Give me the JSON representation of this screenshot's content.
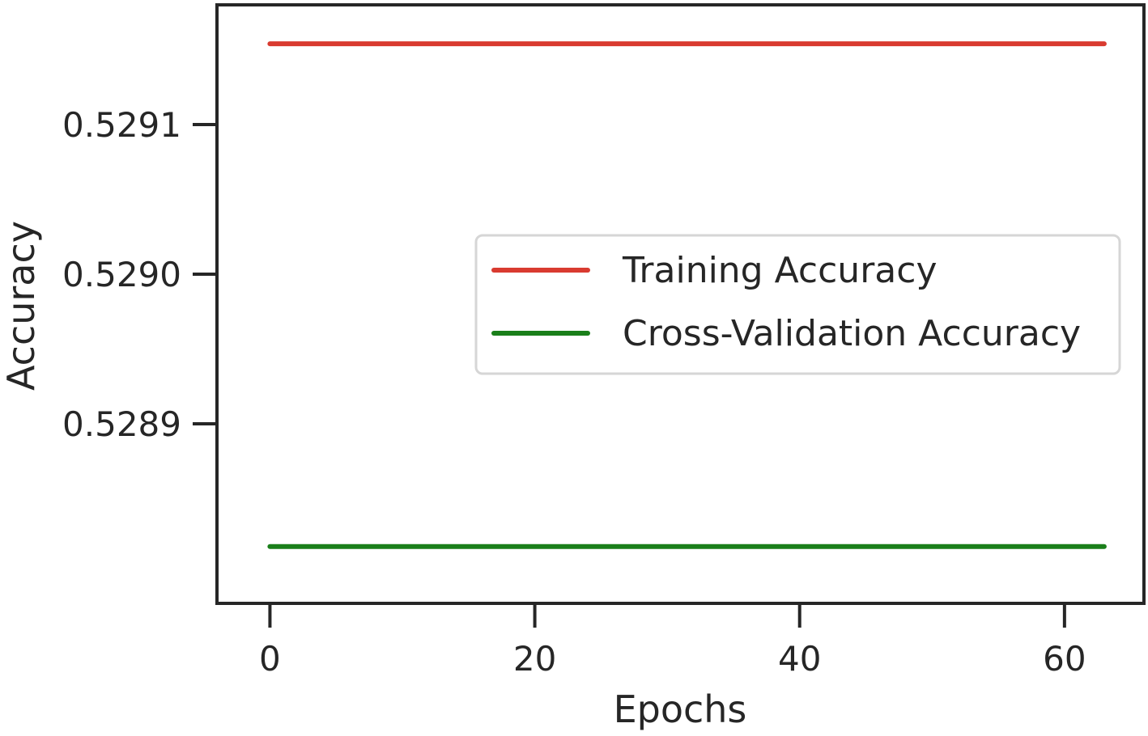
{
  "chart_data": {
    "type": "line",
    "title": "",
    "xlabel": "Epochs",
    "ylabel": "Accuracy",
    "xlim": [
      -4,
      66
    ],
    "ylim": [
      0.52878,
      0.52918
    ],
    "x_ticks": [
      0,
      20,
      40,
      60
    ],
    "x_tick_labels": [
      "0",
      "20",
      "40",
      "60"
    ],
    "y_ticks": [
      0.5289,
      0.529,
      0.5291
    ],
    "y_tick_labels": [
      "0.5289",
      "0.5290",
      "0.5291"
    ],
    "grid": false,
    "legend_position": "center-right",
    "series": [
      {
        "name": "Training Accuracy",
        "color": "#d93b30",
        "x": [
          0,
          63
        ],
        "y": [
          0.529154,
          0.529154
        ]
      },
      {
        "name": "Cross-Validation Accuracy",
        "color": "#1a7f1a",
        "x": [
          0,
          63
        ],
        "y": [
          0.528818,
          0.528818
        ]
      }
    ]
  }
}
